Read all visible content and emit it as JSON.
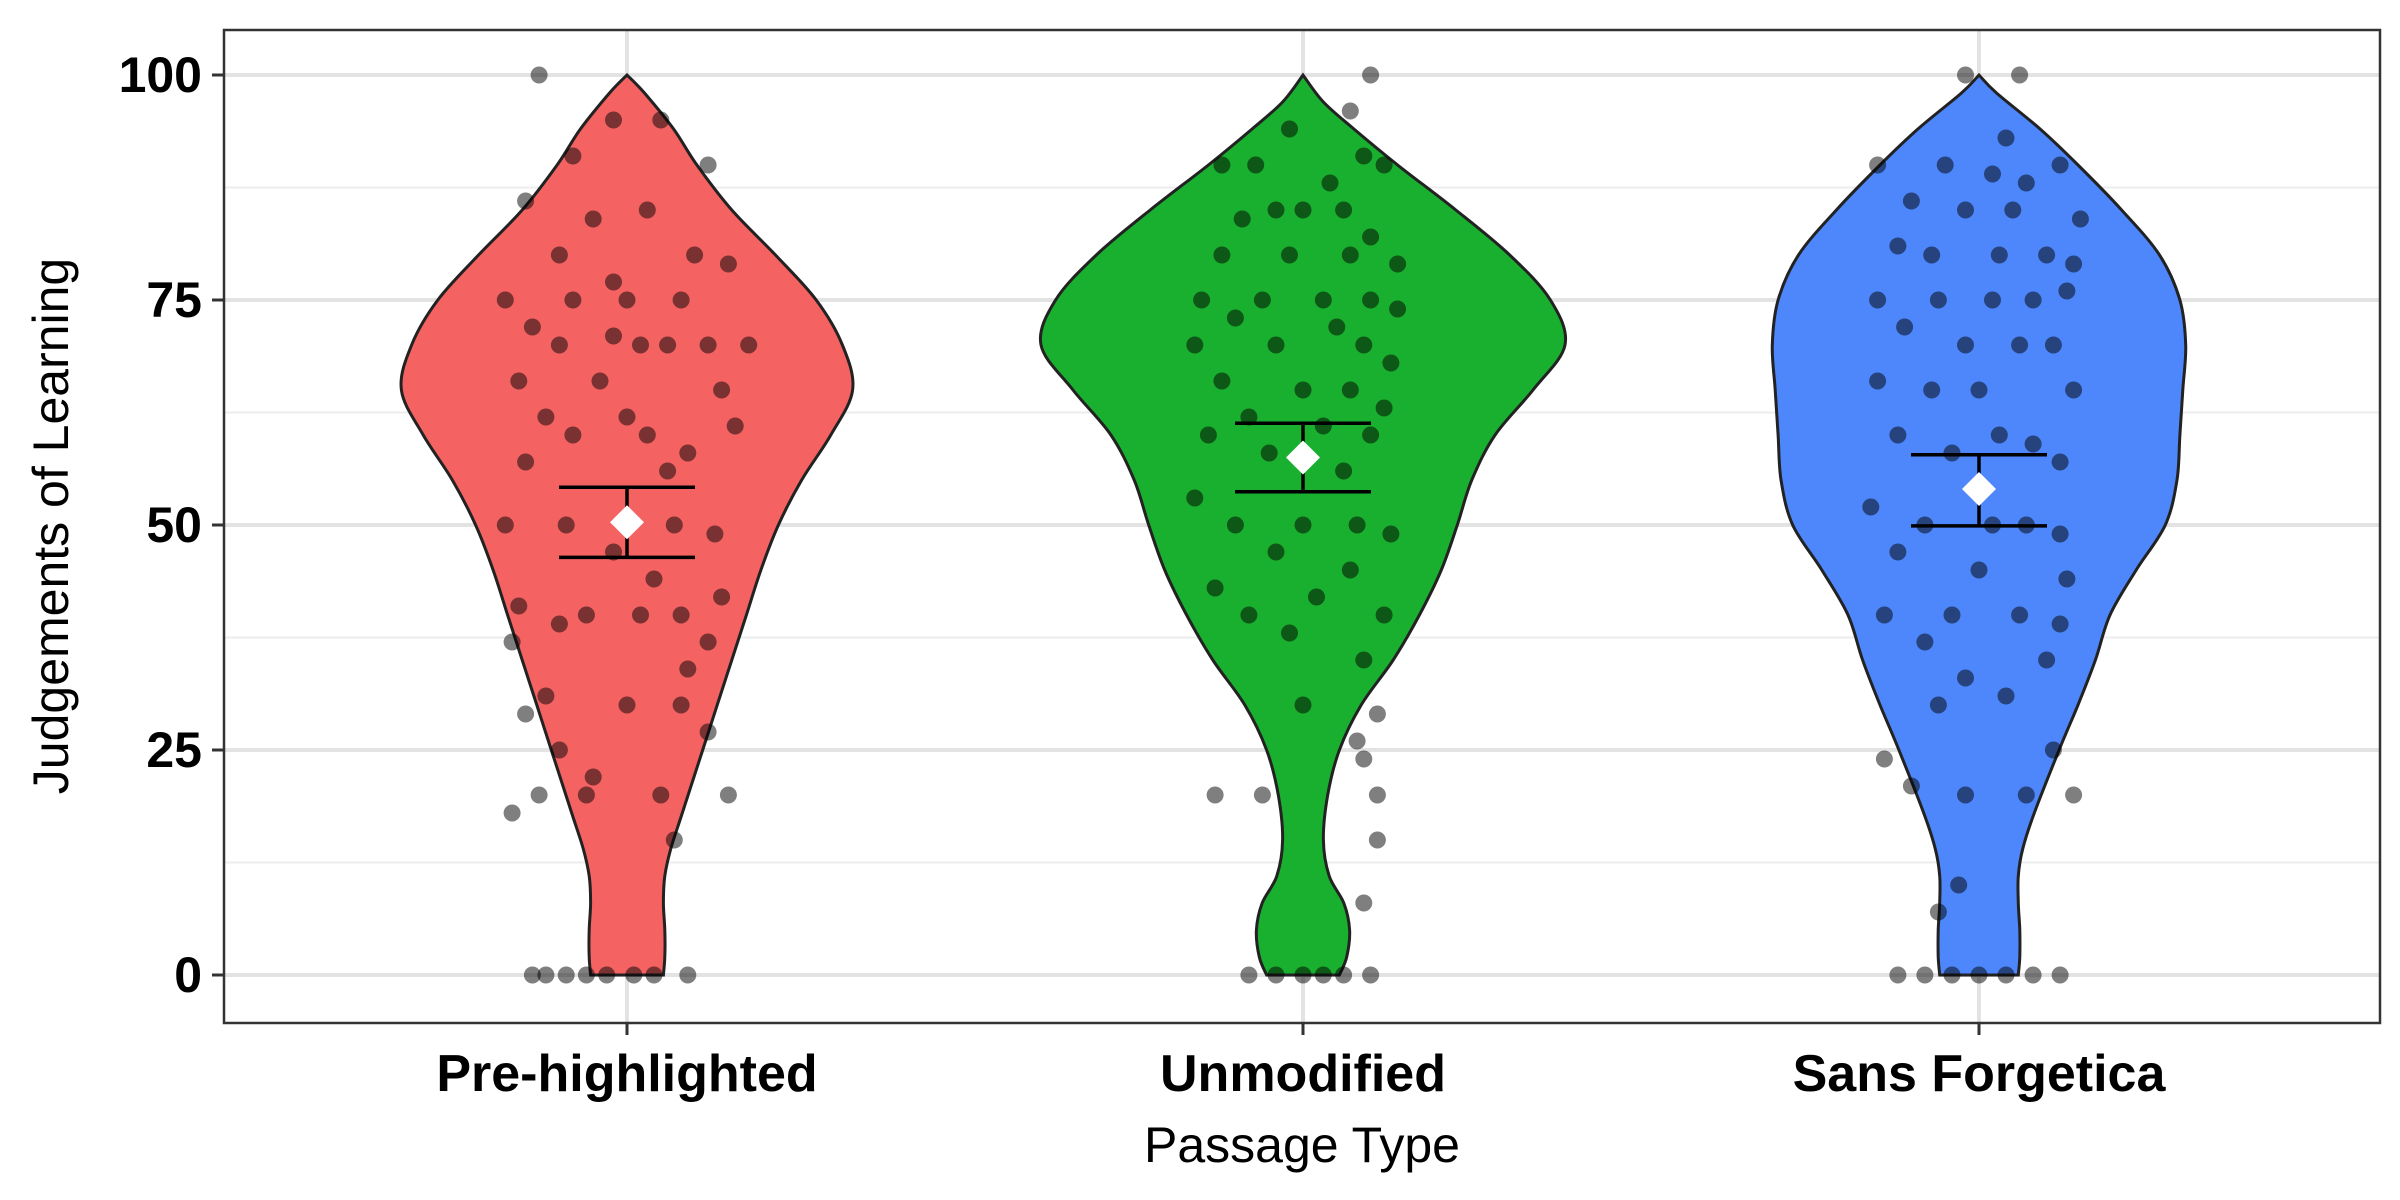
{
  "chart_data": {
    "type": "violin",
    "xlabel": "Passage Type",
    "ylabel": "Judgements of Learning",
    "ylim": [
      -5,
      105
    ],
    "yticks": [
      0,
      25,
      50,
      75,
      100
    ],
    "grid": true,
    "legend": "none",
    "categories": [
      "Pre-highlighted",
      "Unmodified",
      "Sans Forgetica"
    ],
    "groups": [
      {
        "category": "Pre-highlighted",
        "color": "#F46262",
        "mean": 50.3,
        "ci": [
          46.4,
          54.2
        ],
        "density": [
          [
            0,
            0.25
          ],
          [
            2,
            0.26
          ],
          [
            5,
            0.26
          ],
          [
            8,
            0.25
          ],
          [
            11,
            0.26
          ],
          [
            14,
            0.3
          ],
          [
            18,
            0.38
          ],
          [
            25,
            0.52
          ],
          [
            30,
            0.62
          ],
          [
            35,
            0.72
          ],
          [
            40,
            0.82
          ],
          [
            45,
            0.92
          ],
          [
            50,
            1.04
          ],
          [
            55,
            1.2
          ],
          [
            60,
            1.4
          ],
          [
            65,
            1.55
          ],
          [
            70,
            1.48
          ],
          [
            75,
            1.3
          ],
          [
            80,
            1.02
          ],
          [
            85,
            0.72
          ],
          [
            90,
            0.48
          ],
          [
            94,
            0.32
          ],
          [
            98,
            0.12
          ],
          [
            100,
            0.0
          ]
        ],
        "points": [
          [
            -0.13,
            100
          ],
          [
            -0.08,
            91
          ],
          [
            -0.02,
            95
          ],
          [
            0.05,
            95
          ],
          [
            0.12,
            90
          ],
          [
            -0.15,
            86
          ],
          [
            -0.05,
            84
          ],
          [
            0.03,
            85
          ],
          [
            0.1,
            80
          ],
          [
            -0.1,
            80
          ],
          [
            0.15,
            79
          ],
          [
            -0.02,
            77
          ],
          [
            -0.18,
            75
          ],
          [
            -0.08,
            75
          ],
          [
            0.0,
            75
          ],
          [
            0.08,
            75
          ],
          [
            -0.14,
            72
          ],
          [
            -0.02,
            71
          ],
          [
            0.06,
            70
          ],
          [
            0.12,
            70
          ],
          [
            0.18,
            70
          ],
          [
            -0.1,
            70
          ],
          [
            0.02,
            70
          ],
          [
            -0.16,
            66
          ],
          [
            -0.04,
            66
          ],
          [
            0.14,
            65
          ],
          [
            -0.12,
            62
          ],
          [
            0.0,
            62
          ],
          [
            0.16,
            61
          ],
          [
            -0.08,
            60
          ],
          [
            0.03,
            60
          ],
          [
            0.09,
            58
          ],
          [
            -0.15,
            57
          ],
          [
            0.06,
            56
          ],
          [
            -0.18,
            50
          ],
          [
            -0.09,
            50
          ],
          [
            0.0,
            50
          ],
          [
            0.07,
            50
          ],
          [
            0.13,
            49
          ],
          [
            -0.02,
            47
          ],
          [
            0.04,
            44
          ],
          [
            0.14,
            42
          ],
          [
            -0.16,
            41
          ],
          [
            -0.06,
            40
          ],
          [
            0.02,
            40
          ],
          [
            0.08,
            40
          ],
          [
            -0.1,
            39
          ],
          [
            0.12,
            37
          ],
          [
            -0.17,
            37
          ],
          [
            0.09,
            34
          ],
          [
            -0.12,
            31
          ],
          [
            0.0,
            30
          ],
          [
            0.08,
            30
          ],
          [
            -0.15,
            29
          ],
          [
            0.12,
            27
          ],
          [
            -0.1,
            25
          ],
          [
            -0.05,
            22
          ],
          [
            -0.13,
            20
          ],
          [
            0.15,
            20
          ],
          [
            -0.06,
            20
          ],
          [
            0.05,
            20
          ],
          [
            -0.17,
            18
          ],
          [
            0.07,
            15
          ],
          [
            -0.12,
            0
          ],
          [
            -0.09,
            0
          ],
          [
            -0.06,
            0
          ],
          [
            -0.03,
            0
          ],
          [
            0.01,
            0
          ],
          [
            0.04,
            0
          ],
          [
            -0.14,
            0
          ],
          [
            0.09,
            0
          ]
        ]
      },
      {
        "category": "Unmodified",
        "color": "#1AB02F",
        "mean": 57.5,
        "ci": [
          53.7,
          61.3
        ],
        "density": [
          [
            0,
            0.25
          ],
          [
            2,
            0.3
          ],
          [
            5,
            0.32
          ],
          [
            8,
            0.28
          ],
          [
            11,
            0.18
          ],
          [
            15,
            0.14
          ],
          [
            20,
            0.17
          ],
          [
            25,
            0.25
          ],
          [
            30,
            0.4
          ],
          [
            35,
            0.62
          ],
          [
            40,
            0.8
          ],
          [
            45,
            0.95
          ],
          [
            50,
            1.06
          ],
          [
            55,
            1.16
          ],
          [
            60,
            1.32
          ],
          [
            65,
            1.58
          ],
          [
            70,
            1.8
          ],
          [
            75,
            1.7
          ],
          [
            80,
            1.42
          ],
          [
            85,
            1.05
          ],
          [
            90,
            0.65
          ],
          [
            94,
            0.35
          ],
          [
            97,
            0.14
          ],
          [
            100,
            0.0
          ]
        ],
        "points": [
          [
            0.1,
            100
          ],
          [
            0.07,
            96
          ],
          [
            -0.02,
            94
          ],
          [
            0.09,
            91
          ],
          [
            -0.07,
            90
          ],
          [
            -0.12,
            90
          ],
          [
            0.12,
            90
          ],
          [
            0.04,
            88
          ],
          [
            -0.04,
            85
          ],
          [
            0.0,
            85
          ],
          [
            0.06,
            85
          ],
          [
            -0.09,
            84
          ],
          [
            0.1,
            82
          ],
          [
            -0.12,
            80
          ],
          [
            -0.02,
            80
          ],
          [
            0.07,
            80
          ],
          [
            0.14,
            79
          ],
          [
            -0.15,
            75
          ],
          [
            -0.06,
            75
          ],
          [
            0.03,
            75
          ],
          [
            0.1,
            75
          ],
          [
            0.14,
            74
          ],
          [
            -0.1,
            73
          ],
          [
            0.05,
            72
          ],
          [
            -0.16,
            70
          ],
          [
            -0.04,
            70
          ],
          [
            0.09,
            70
          ],
          [
            0.13,
            68
          ],
          [
            -0.12,
            66
          ],
          [
            0.0,
            65
          ],
          [
            0.07,
            65
          ],
          [
            0.12,
            63
          ],
          [
            -0.08,
            62
          ],
          [
            0.03,
            61
          ],
          [
            -0.14,
            60
          ],
          [
            0.1,
            60
          ],
          [
            -0.05,
            58
          ],
          [
            0.06,
            56
          ],
          [
            -0.16,
            53
          ],
          [
            -0.1,
            50
          ],
          [
            0.0,
            50
          ],
          [
            0.08,
            50
          ],
          [
            0.13,
            49
          ],
          [
            -0.04,
            47
          ],
          [
            0.07,
            45
          ],
          [
            -0.13,
            43
          ],
          [
            0.02,
            42
          ],
          [
            -0.08,
            40
          ],
          [
            0.12,
            40
          ],
          [
            -0.02,
            38
          ],
          [
            0.09,
            35
          ],
          [
            0.0,
            30
          ],
          [
            0.11,
            29
          ],
          [
            0.08,
            26
          ],
          [
            0.09,
            24
          ],
          [
            -0.13,
            20
          ],
          [
            -0.06,
            20
          ],
          [
            0.11,
            20
          ],
          [
            0.11,
            15
          ],
          [
            0.09,
            8
          ],
          [
            -0.08,
            0
          ],
          [
            -0.04,
            0
          ],
          [
            0.0,
            0
          ],
          [
            0.03,
            0
          ],
          [
            0.06,
            0
          ],
          [
            0.1,
            0
          ]
        ]
      },
      {
        "category": "Sans Forgetica",
        "color": "#4D87FB",
        "mean": 54,
        "ci": [
          49.9,
          57.8
        ],
        "density": [
          [
            0,
            0.27
          ],
          [
            2,
            0.28
          ],
          [
            5,
            0.28
          ],
          [
            8,
            0.27
          ],
          [
            11,
            0.27
          ],
          [
            14,
            0.3
          ],
          [
            18,
            0.38
          ],
          [
            25,
            0.55
          ],
          [
            30,
            0.68
          ],
          [
            35,
            0.8
          ],
          [
            40,
            0.9
          ],
          [
            45,
            1.08
          ],
          [
            50,
            1.28
          ],
          [
            55,
            1.36
          ],
          [
            60,
            1.38
          ],
          [
            65,
            1.4
          ],
          [
            70,
            1.42
          ],
          [
            75,
            1.38
          ],
          [
            80,
            1.24
          ],
          [
            85,
            0.98
          ],
          [
            90,
            0.68
          ],
          [
            94,
            0.42
          ],
          [
            98,
            0.12
          ],
          [
            100,
            0.0
          ]
        ],
        "points": [
          [
            -0.02,
            100
          ],
          [
            0.06,
            100
          ],
          [
            0.04,
            93
          ],
          [
            -0.15,
            90
          ],
          [
            -0.05,
            90
          ],
          [
            0.02,
            89
          ],
          [
            0.12,
            90
          ],
          [
            0.07,
            88
          ],
          [
            -0.1,
            86
          ],
          [
            -0.02,
            85
          ],
          [
            0.05,
            85
          ],
          [
            0.15,
            84
          ],
          [
            -0.12,
            81
          ],
          [
            -0.07,
            80
          ],
          [
            0.03,
            80
          ],
          [
            0.1,
            80
          ],
          [
            0.14,
            79
          ],
          [
            -0.15,
            75
          ],
          [
            -0.06,
            75
          ],
          [
            0.02,
            75
          ],
          [
            0.08,
            75
          ],
          [
            0.13,
            76
          ],
          [
            -0.11,
            72
          ],
          [
            -0.02,
            70
          ],
          [
            0.06,
            70
          ],
          [
            0.11,
            70
          ],
          [
            -0.15,
            66
          ],
          [
            -0.07,
            65
          ],
          [
            0.0,
            65
          ],
          [
            0.14,
            65
          ],
          [
            -0.12,
            60
          ],
          [
            0.03,
            60
          ],
          [
            0.08,
            59
          ],
          [
            -0.04,
            58
          ],
          [
            0.12,
            57
          ],
          [
            -0.16,
            52
          ],
          [
            -0.08,
            50
          ],
          [
            0.02,
            50
          ],
          [
            0.07,
            50
          ],
          [
            0.12,
            49
          ],
          [
            -0.12,
            47
          ],
          [
            0.0,
            45
          ],
          [
            0.13,
            44
          ],
          [
            -0.14,
            40
          ],
          [
            -0.04,
            40
          ],
          [
            0.06,
            40
          ],
          [
            0.12,
            39
          ],
          [
            -0.08,
            37
          ],
          [
            0.1,
            35
          ],
          [
            -0.02,
            33
          ],
          [
            0.04,
            31
          ],
          [
            -0.06,
            30
          ],
          [
            0.11,
            25
          ],
          [
            -0.14,
            24
          ],
          [
            -0.1,
            21
          ],
          [
            -0.02,
            20
          ],
          [
            0.07,
            20
          ],
          [
            0.14,
            20
          ],
          [
            -0.03,
            10
          ],
          [
            -0.06,
            7
          ],
          [
            -0.12,
            0
          ],
          [
            -0.08,
            0
          ],
          [
            -0.04,
            0
          ],
          [
            0.0,
            0
          ],
          [
            0.04,
            0
          ],
          [
            0.08,
            0
          ],
          [
            0.12,
            0
          ]
        ]
      }
    ]
  }
}
